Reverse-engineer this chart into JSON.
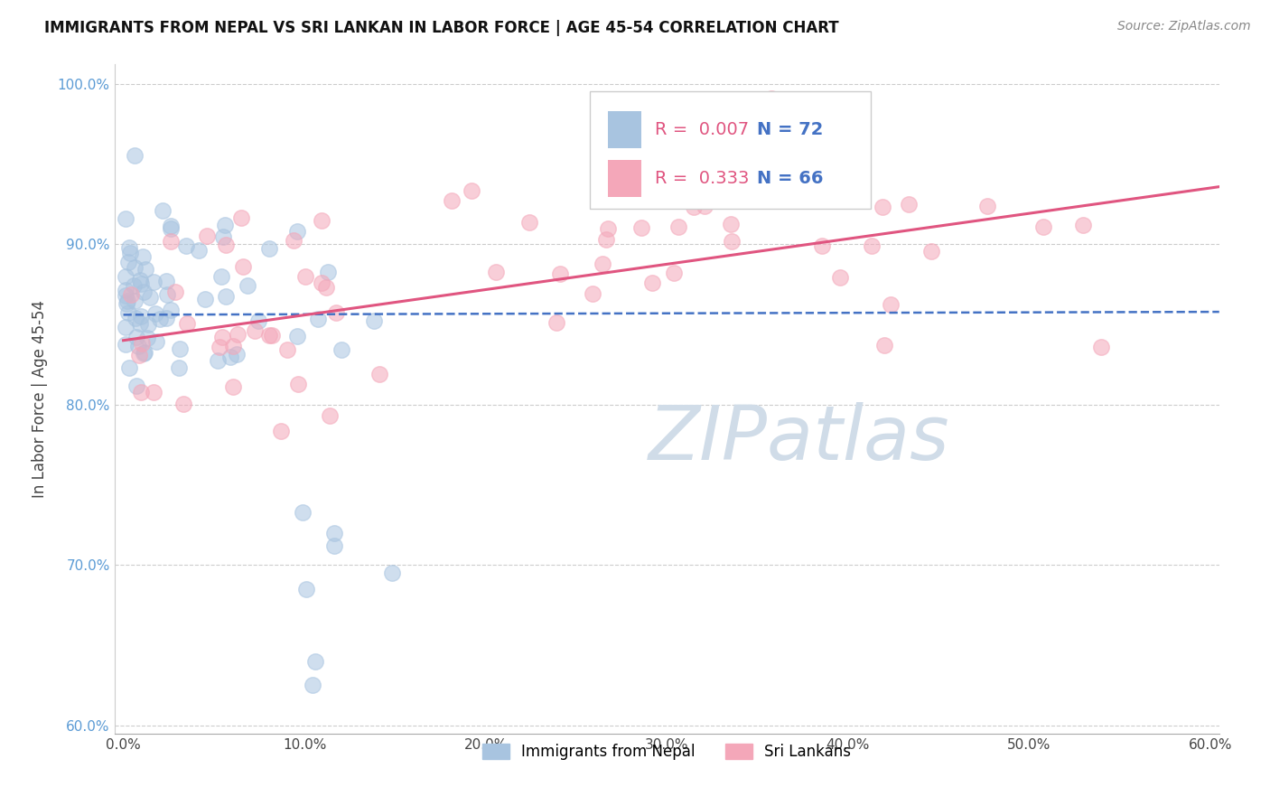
{
  "title": "IMMIGRANTS FROM NEPAL VS SRI LANKAN IN LABOR FORCE | AGE 45-54 CORRELATION CHART",
  "source": "Source: ZipAtlas.com",
  "ylabel": "In Labor Force | Age 45-54",
  "xlabel": "",
  "xlim": [
    -0.005,
    0.605
  ],
  "ylim": [
    0.595,
    1.012
  ],
  "x_ticks": [
    0.0,
    0.1,
    0.2,
    0.3,
    0.4,
    0.5,
    0.6
  ],
  "x_tick_labels": [
    "0.0%",
    "10.0%",
    "20.0%",
    "30.0%",
    "40.0%",
    "50.0%",
    "60.0%"
  ],
  "y_ticks": [
    0.6,
    0.7,
    0.8,
    0.9,
    1.0
  ],
  "y_tick_labels": [
    "60.0%",
    "70.0%",
    "80.0%",
    "90.0%",
    "100.0%"
  ],
  "nepal_color": "#a8c4e0",
  "srilanka_color": "#f4a7b9",
  "nepal_line_color": "#4472c4",
  "srilanka_line_color": "#e05580",
  "watermark": "ZIPatlas",
  "watermark_color": "#d0dce8",
  "legend_R_nepal": "0.007",
  "legend_N_nepal": "72",
  "legend_R_srilanka": "0.333",
  "legend_N_srilanka": "66",
  "legend_label_nepal": "Immigrants from Nepal",
  "legend_label_srilanka": "Sri Lankans",
  "nepal_seed": 12,
  "srilanka_seed": 7
}
